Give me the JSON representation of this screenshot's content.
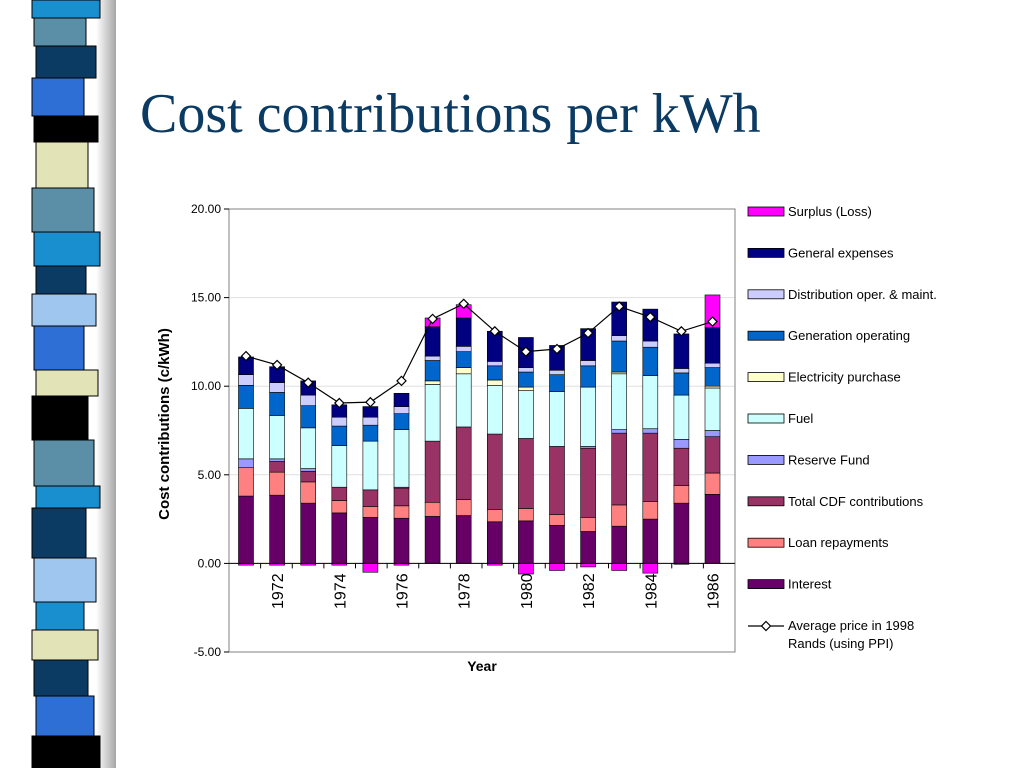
{
  "slide": {
    "title": "Cost contributions per kWh"
  },
  "strip": {
    "segments": [
      {
        "color": "#1a8fd0",
        "height": 18
      },
      {
        "color": "#5b8fa8",
        "height": 28
      },
      {
        "color": "#0b3a63",
        "height": 32
      },
      {
        "color": "#2e6fd6",
        "height": 38
      },
      {
        "color": "#000000",
        "height": 26
      },
      {
        "color": "#e3e3b8",
        "height": 46
      },
      {
        "color": "#5b8fa8",
        "height": 44
      },
      {
        "color": "#1a8fd0",
        "height": 34
      },
      {
        "color": "#0b3a63",
        "height": 28
      },
      {
        "color": "#9fc6ee",
        "height": 32
      },
      {
        "color": "#2e6fd6",
        "height": 44
      },
      {
        "color": "#e3e3b8",
        "height": 26
      },
      {
        "color": "#000000",
        "height": 44
      },
      {
        "color": "#5b8fa8",
        "height": 46
      },
      {
        "color": "#1a8fd0",
        "height": 22
      },
      {
        "color": "#0b3a63",
        "height": 50
      },
      {
        "color": "#9fc6ee",
        "height": 44
      },
      {
        "color": "#1a8fd0",
        "height": 28
      },
      {
        "color": "#e3e3b8",
        "height": 30
      },
      {
        "color": "#0b3a63",
        "height": 36
      },
      {
        "color": "#2e6fd6",
        "height": 40
      },
      {
        "color": "#000000",
        "height": 38
      }
    ]
  },
  "chart_data": {
    "type": "bar",
    "stacked": true,
    "xlabel": "Year",
    "ylabel": "Cost contributions (c/kWh)",
    "ylim": [
      -5,
      20
    ],
    "yticks": [
      "20.00",
      "15.00",
      "10.00",
      "5.00",
      "0.00",
      "-5.00"
    ],
    "ytick_values": [
      20,
      15,
      10,
      5,
      0,
      -5
    ],
    "categories": [
      1971,
      1972,
      1973,
      1974,
      1975,
      1976,
      1977,
      1978,
      1979,
      1980,
      1981,
      1982,
      1983,
      1984,
      1985,
      1986
    ],
    "xtick_labels": [
      {
        "year": 1972,
        "label": "1972"
      },
      {
        "year": 1974,
        "label": "1974"
      },
      {
        "year": 1976,
        "label": "1976"
      },
      {
        "year": 1978,
        "label": "1978"
      },
      {
        "year": 1980,
        "label": "1980"
      },
      {
        "year": 1982,
        "label": "1982"
      },
      {
        "year": 1984,
        "label": "1984"
      },
      {
        "year": 1986,
        "label": "1986"
      }
    ],
    "grid": "horizontal",
    "legend_position": "right",
    "series": [
      {
        "name": "Interest",
        "color": "#660066",
        "values": [
          3.8,
          3.85,
          3.4,
          2.85,
          2.6,
          2.55,
          2.65,
          2.7,
          2.35,
          2.4,
          2.15,
          1.8,
          2.1,
          2.5,
          3.4,
          3.9
        ]
      },
      {
        "name": "Loan repayments",
        "color": "#ff8080",
        "values": [
          1.6,
          1.3,
          1.2,
          0.7,
          0.6,
          0.7,
          0.8,
          0.9,
          0.7,
          0.7,
          0.6,
          0.8,
          1.2,
          1.0,
          1.0,
          1.2
        ]
      },
      {
        "name": "Total CDF contributions",
        "color": "#993366",
        "values": [
          0,
          0.6,
          0.6,
          0.75,
          0.95,
          1.0,
          3.45,
          4.1,
          4.25,
          3.95,
          3.85,
          3.9,
          4.05,
          3.85,
          2.1,
          2.05
        ]
      },
      {
        "name": "Reserve Fund",
        "color": "#9999ff",
        "values": [
          0.5,
          0.15,
          0.15,
          0,
          0,
          0.05,
          0,
          0,
          0,
          0,
          0,
          0.1,
          0.2,
          0.25,
          0.5,
          0.35
        ]
      },
      {
        "name": "Fuel",
        "color": "#ccffff",
        "values": [
          2.85,
          2.45,
          2.3,
          2.35,
          2.75,
          3.25,
          3.2,
          3.0,
          2.75,
          2.7,
          3.1,
          3.35,
          3.15,
          3.0,
          2.5,
          2.4
        ]
      },
      {
        "name": "Electricity purchase",
        "color": "#ffffcc",
        "values": [
          0,
          0,
          0,
          0,
          0,
          0,
          0.2,
          0.35,
          0.3,
          0.2,
          0,
          0,
          0.1,
          0,
          0,
          0.1
        ]
      },
      {
        "name": "Generation operating",
        "color": "#0066cc",
        "values": [
          1.3,
          1.3,
          1.25,
          1.1,
          0.9,
          0.9,
          1.15,
          0.9,
          0.8,
          0.85,
          0.95,
          1.2,
          1.75,
          1.6,
          1.25,
          1.05
        ]
      },
      {
        "name": "Distribution oper. & maint.",
        "color": "#ccccff",
        "values": [
          0.6,
          0.55,
          0.6,
          0.5,
          0.45,
          0.4,
          0.25,
          0.3,
          0.25,
          0.25,
          0.25,
          0.3,
          0.3,
          0.35,
          0.25,
          0.25
        ]
      },
      {
        "name": "General expenses",
        "color": "#000080",
        "values": [
          1.0,
          0.9,
          0.8,
          0.7,
          0.6,
          0.75,
          1.65,
          1.6,
          1.7,
          1.7,
          1.4,
          1.8,
          1.9,
          1.8,
          1.95,
          2.0
        ]
      },
      {
        "name": "Surplus (Loss)",
        "color": "#ff00ff",
        "values": [
          -0.1,
          -0.1,
          -0.1,
          -0.1,
          -0.5,
          -0.1,
          0.5,
          0.75,
          -0.1,
          -0.6,
          -0.4,
          -0.2,
          -0.4,
          -0.55,
          -0.05,
          1.85
        ]
      }
    ],
    "line_series": {
      "name": "Average price in 1998 Rands (using PPI)",
      "color": "#000000",
      "values": [
        11.7,
        11.2,
        10.2,
        9.05,
        9.1,
        10.3,
        13.8,
        14.65,
        13.1,
        11.95,
        12.1,
        13.0,
        14.5,
        13.9,
        13.1,
        13.65
      ]
    },
    "legend": [
      "Surplus (Loss)",
      "General expenses",
      "Distribution oper. & maint.",
      "Generation operating",
      "Electricity purchase",
      "Fuel",
      "Reserve Fund",
      "Total CDF contributions",
      "Loan repayments",
      "Interest",
      "Average price in 1998 Rands (using PPI)"
    ]
  }
}
